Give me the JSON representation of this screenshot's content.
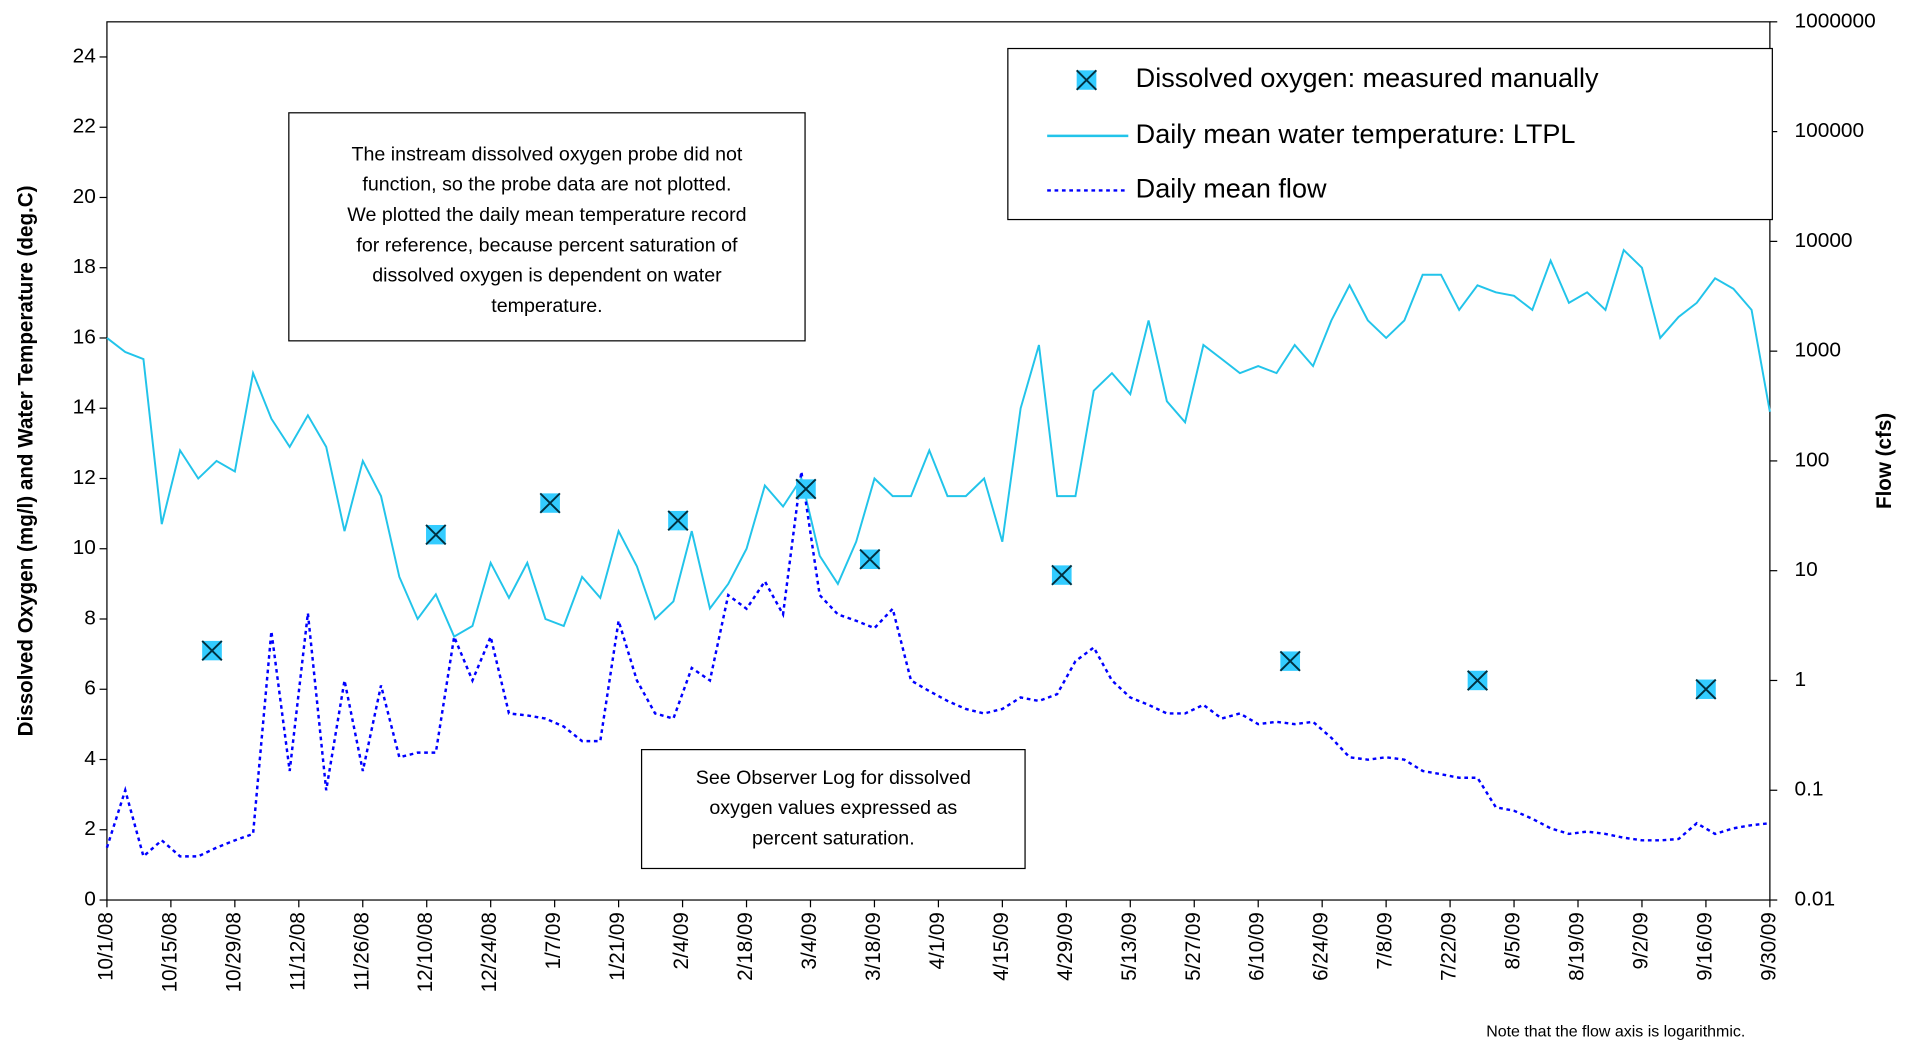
{
  "chart_data": {
    "type": "line",
    "ylabel": "Dissolved Oxygen (mg/l)  and   Water Temperature (deg.C)",
    "y2label": "Flow (cfs)",
    "annotations": [
      [
        "The instream dissolved oxygen probe did not",
        "function, so the probe data are not plotted.",
        "We plotted the daily mean temperature record",
        "for reference, because percent saturation of",
        "dissolved oxygen is dependent on water",
        "temperature."
      ],
      [
        "See Observer Log for dissolved",
        "oxygen values expressed as",
        "percent saturation."
      ]
    ],
    "footnote": "Note that the flow axis is logarithmic.",
    "legend": "upper right",
    "xlim": [
      "2008-10-01",
      "2009-09-30"
    ],
    "xticks": [
      {
        "value": "2008-10-01",
        "label": "10/1/08"
      },
      {
        "value": "2008-10-15",
        "label": "10/15/08"
      },
      {
        "value": "2008-10-29",
        "label": "10/29/08"
      },
      {
        "value": "2008-11-12",
        "label": "11/12/08"
      },
      {
        "value": "2008-11-26",
        "label": "11/26/08"
      },
      {
        "value": "2008-12-10",
        "label": "12/10/08"
      },
      {
        "value": "2008-12-24",
        "label": "12/24/08"
      },
      {
        "value": "2009-01-07",
        "label": "1/7/09"
      },
      {
        "value": "2009-01-21",
        "label": "1/21/09"
      },
      {
        "value": "2009-02-04",
        "label": "2/4/09"
      },
      {
        "value": "2009-02-18",
        "label": "2/18/09"
      },
      {
        "value": "2009-03-04",
        "label": "3/4/09"
      },
      {
        "value": "2009-03-18",
        "label": "3/18/09"
      },
      {
        "value": "2009-04-01",
        "label": "4/1/09"
      },
      {
        "value": "2009-04-15",
        "label": "4/15/09"
      },
      {
        "value": "2009-04-29",
        "label": "4/29/09"
      },
      {
        "value": "2009-05-13",
        "label": "5/13/09"
      },
      {
        "value": "2009-05-27",
        "label": "5/27/09"
      },
      {
        "value": "2009-06-10",
        "label": "6/10/09"
      },
      {
        "value": "2009-06-24",
        "label": "6/24/09"
      },
      {
        "value": "2009-07-08",
        "label": "7/8/09"
      },
      {
        "value": "2009-07-22",
        "label": "7/22/09"
      },
      {
        "value": "2009-08-05",
        "label": "8/5/09"
      },
      {
        "value": "2009-08-19",
        "label": "8/19/09"
      },
      {
        "value": "2009-09-02",
        "label": "9/2/09"
      },
      {
        "value": "2009-09-16",
        "label": "9/16/09"
      },
      {
        "value": "2009-09-30",
        "label": "9/30/09"
      }
    ],
    "ylim": [
      0,
      25
    ],
    "yticks": [
      0,
      2,
      4,
      6,
      8,
      10,
      12,
      14,
      16,
      18,
      20,
      22,
      24
    ],
    "y2lim": [
      0.01,
      1000000
    ],
    "y2ticks": [
      0.01,
      0.1,
      1,
      10,
      100,
      1000,
      10000,
      100000,
      1000000
    ],
    "y2log": true,
    "x": [
      "2008-10-01",
      "2008-10-05",
      "2008-10-09",
      "2008-10-13",
      "2008-10-17",
      "2008-10-21",
      "2008-10-25",
      "2008-10-29",
      "2008-11-02",
      "2008-11-06",
      "2008-11-10",
      "2008-11-14",
      "2008-11-18",
      "2008-11-22",
      "2008-11-26",
      "2008-11-30",
      "2008-12-04",
      "2008-12-08",
      "2008-12-12",
      "2008-12-16",
      "2008-12-20",
      "2008-12-24",
      "2008-12-28",
      "2009-01-01",
      "2009-01-05",
      "2009-01-09",
      "2009-01-13",
      "2009-01-17",
      "2009-01-21",
      "2009-01-25",
      "2009-01-29",
      "2009-02-02",
      "2009-02-06",
      "2009-02-10",
      "2009-02-14",
      "2009-02-18",
      "2009-02-22",
      "2009-02-26",
      "2009-03-02",
      "2009-03-06",
      "2009-03-10",
      "2009-03-14",
      "2009-03-18",
      "2009-03-22",
      "2009-03-26",
      "2009-03-30",
      "2009-04-03",
      "2009-04-07",
      "2009-04-11",
      "2009-04-15",
      "2009-04-19",
      "2009-04-23",
      "2009-04-27",
      "2009-05-01",
      "2009-05-05",
      "2009-05-09",
      "2009-05-13",
      "2009-05-17",
      "2009-05-21",
      "2009-05-25",
      "2009-05-29",
      "2009-06-02",
      "2009-06-06",
      "2009-06-10",
      "2009-06-14",
      "2009-06-18",
      "2009-06-22",
      "2009-06-26",
      "2009-06-30",
      "2009-07-04",
      "2009-07-08",
      "2009-07-12",
      "2009-07-16",
      "2009-07-20",
      "2009-07-24",
      "2009-07-28",
      "2009-08-01",
      "2009-08-05",
      "2009-08-09",
      "2009-08-13",
      "2009-08-17",
      "2009-08-21",
      "2009-08-25",
      "2009-08-29",
      "2009-09-02",
      "2009-09-06",
      "2009-09-10",
      "2009-09-14",
      "2009-09-18",
      "2009-09-22",
      "2009-09-26",
      "2009-09-30"
    ],
    "series": [
      {
        "name": "Daily mean water temperature: LTPL",
        "color": "#22c4ea",
        "values": [
          16.0,
          15.6,
          15.4,
          10.7,
          12.8,
          12.0,
          12.5,
          12.2,
          15.0,
          13.7,
          12.9,
          13.8,
          12.9,
          10.5,
          12.5,
          11.5,
          9.2,
          8.0,
          8.7,
          7.5,
          7.8,
          9.6,
          8.6,
          9.6,
          8.0,
          7.8,
          9.2,
          8.6,
          10.5,
          9.5,
          8.0,
          8.5,
          10.5,
          8.3,
          9.0,
          10.0,
          11.8,
          11.2,
          12.0,
          9.8,
          9.0,
          10.2,
          12.0,
          11.5,
          11.5,
          12.8,
          11.5,
          11.5,
          12.0,
          10.2,
          14.0,
          15.8,
          11.5,
          11.5,
          14.5,
          15.0,
          14.4,
          16.5,
          14.2,
          13.6,
          15.8,
          15.4,
          15.0,
          15.2,
          15.0,
          15.8,
          15.2,
          16.5,
          17.5,
          16.5,
          16.0,
          16.5,
          17.8,
          17.8,
          16.8,
          17.5,
          17.3,
          17.2,
          16.8,
          18.2,
          17.0,
          17.3,
          16.8,
          18.5,
          18.0,
          16.0,
          16.6,
          17.0,
          17.7,
          17.4,
          16.8,
          13.9
        ]
      },
      {
        "name": "Daily mean flow",
        "color": "#0000ff",
        "axis": "y2",
        "dashed": true,
        "values": [
          0.03,
          0.1,
          0.025,
          0.035,
          0.025,
          0.025,
          0.03,
          0.035,
          0.04,
          2.8,
          0.15,
          4.1,
          0.1,
          1.0,
          0.15,
          0.9,
          0.2,
          0.22,
          0.22,
          2.5,
          1.0,
          2.5,
          0.5,
          0.48,
          0.45,
          0.38,
          0.28,
          0.28,
          3.5,
          1.0,
          0.5,
          0.45,
          1.3,
          1.0,
          6,
          4.5,
          8,
          4,
          80,
          6,
          4,
          3.5,
          3.0,
          4.5,
          1.0,
          0.8,
          0.65,
          0.55,
          0.5,
          0.55,
          0.7,
          0.65,
          0.75,
          1.5,
          2.0,
          1.0,
          0.7,
          0.6,
          0.5,
          0.5,
          0.6,
          0.45,
          0.5,
          0.4,
          0.42,
          0.4,
          0.42,
          0.3,
          0.2,
          0.19,
          0.2,
          0.19,
          0.15,
          0.14,
          0.13,
          0.13,
          0.07,
          0.065,
          0.055,
          0.045,
          0.04,
          0.042,
          0.04,
          0.037,
          0.035,
          0.035,
          0.036,
          0.05,
          0.04,
          0.045,
          0.048,
          0.05
        ]
      }
    ],
    "points": {
      "name": "Dissolved oxygen: measured manually",
      "color": "#33ccff",
      "x": [
        "2008-10-24",
        "2008-12-12",
        "2009-01-06",
        "2009-02-03",
        "2009-03-03",
        "2009-03-17",
        "2009-04-28",
        "2009-06-17",
        "2009-07-28",
        "2009-09-16"
      ],
      "values": [
        7.1,
        10.4,
        11.3,
        10.8,
        11.7,
        9.7,
        9.25,
        6.8,
        6.25,
        6.0
      ]
    }
  }
}
